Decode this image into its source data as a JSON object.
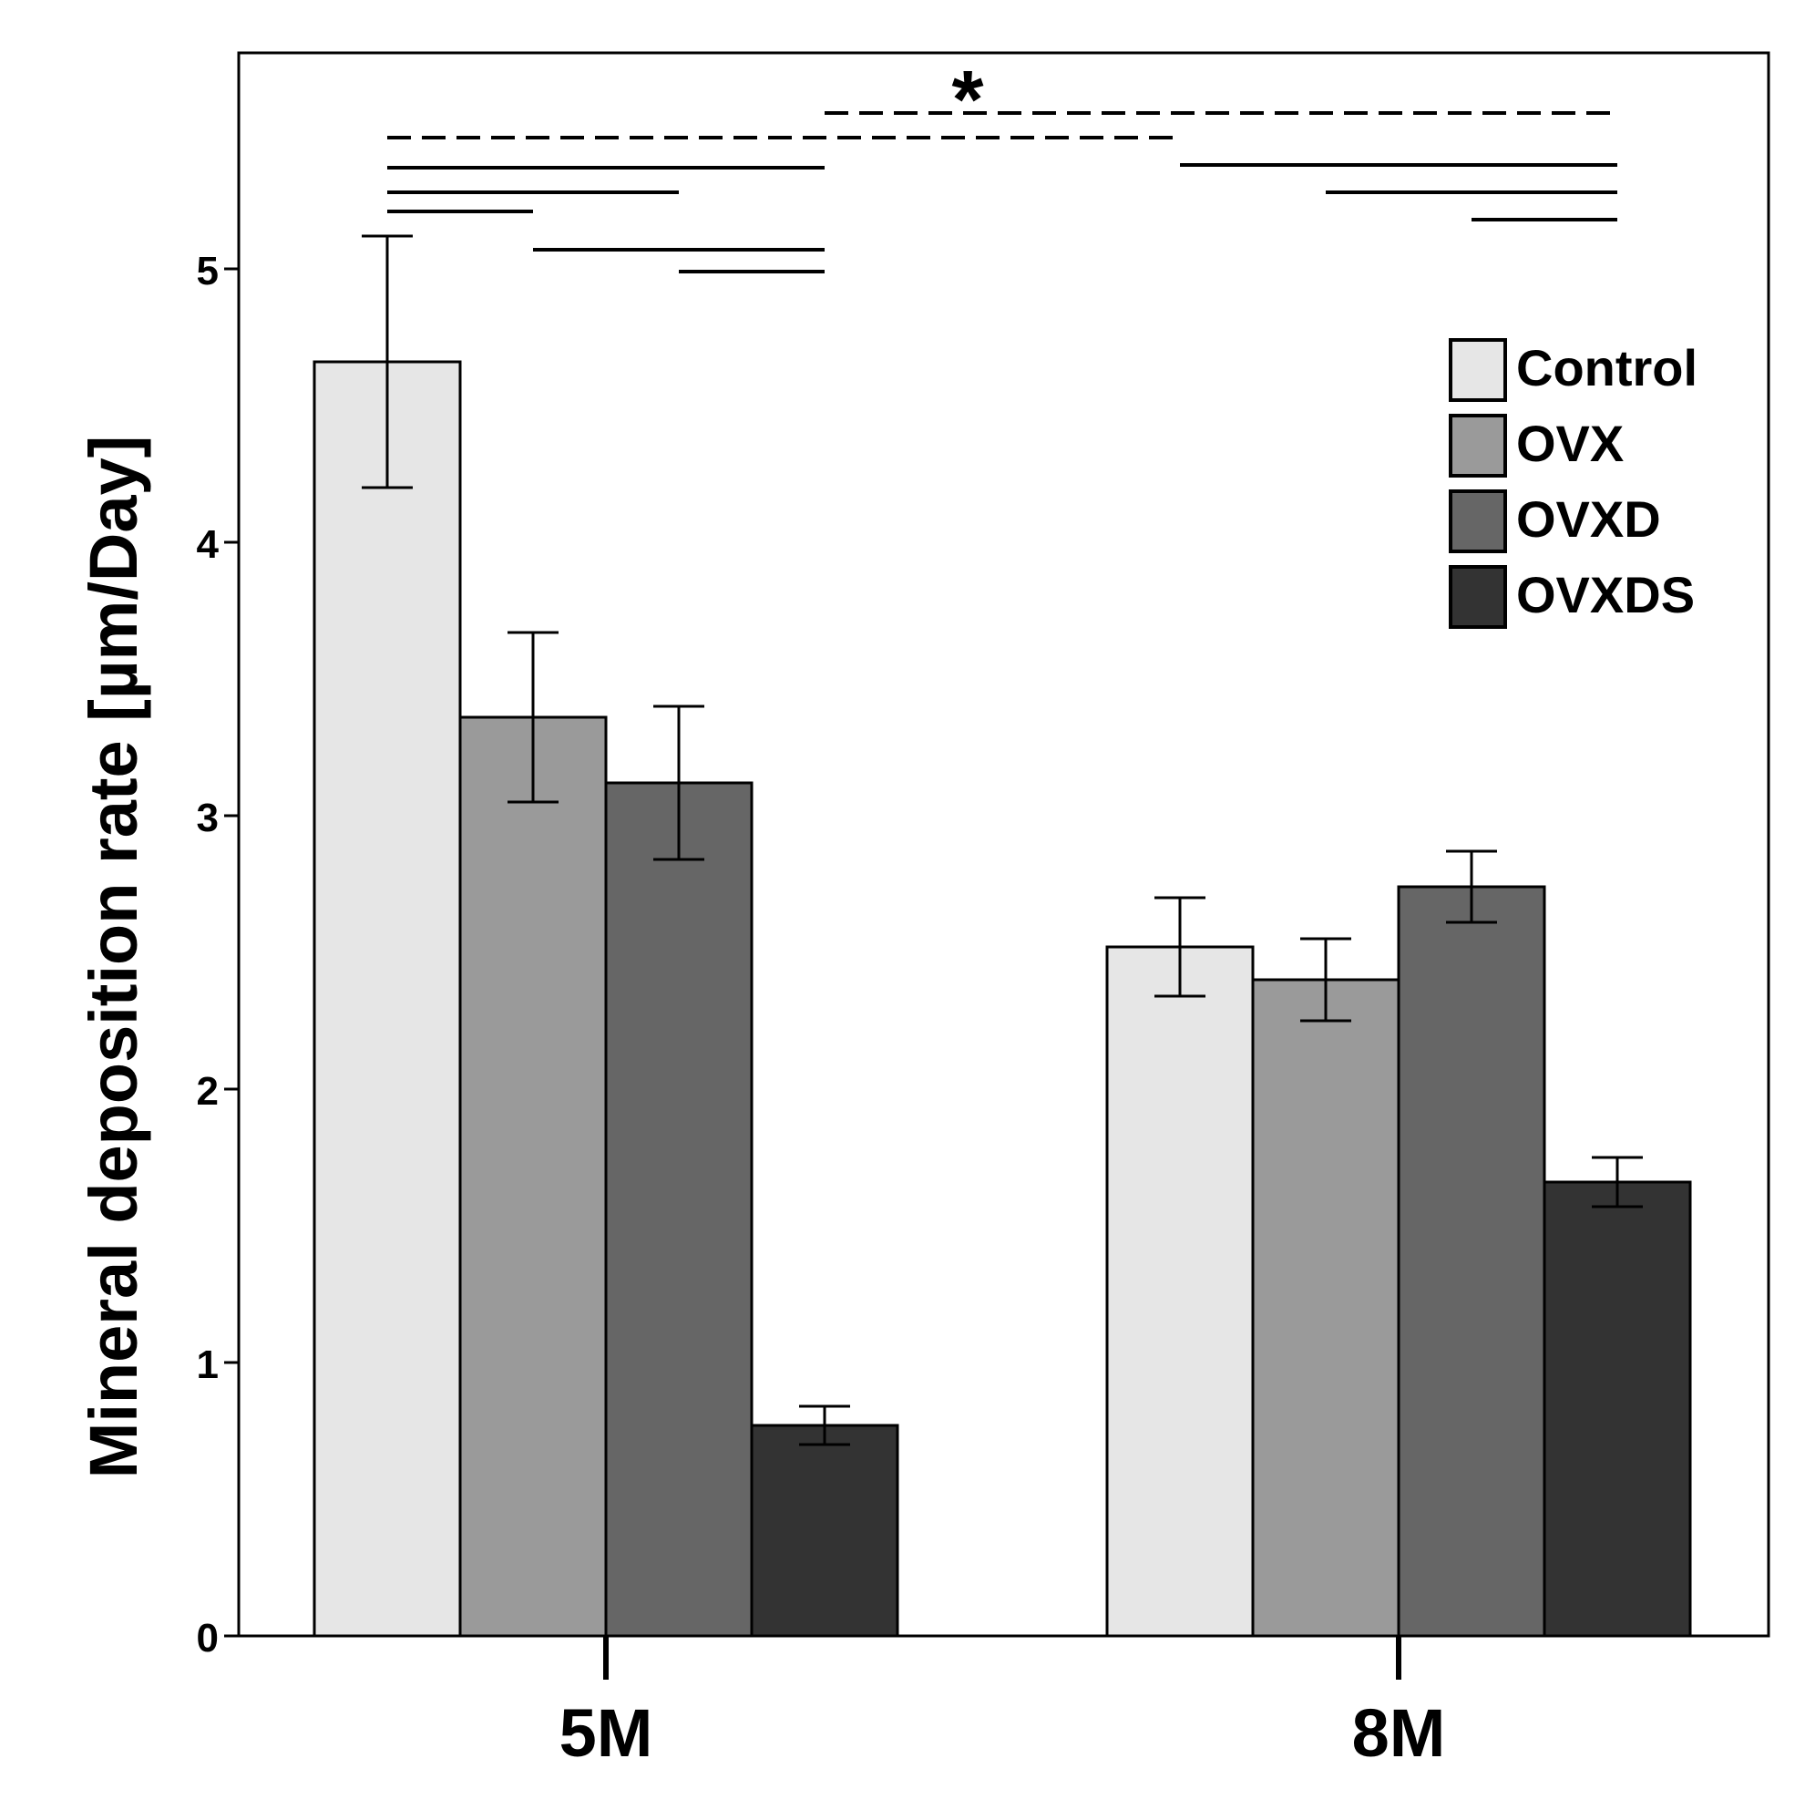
{
  "chart_data": {
    "type": "bar",
    "title": "",
    "xlabel": "",
    "ylabel": "Mineral deposition rate [µm/Day]",
    "categories": [
      "5M",
      "8M"
    ],
    "ylim": [
      0,
      5.8
    ],
    "yticks": [
      0,
      1,
      2,
      3,
      4,
      5
    ],
    "grid": false,
    "legend_position": "top-right",
    "series": [
      {
        "name": "Control",
        "color": "#e6e6e6",
        "values": [
          4.66,
          2.52
        ],
        "errors": [
          0.46,
          0.18
        ]
      },
      {
        "name": "OVX",
        "color": "#9a9a9a",
        "values": [
          3.36,
          2.4
        ],
        "errors": [
          0.31,
          0.15
        ]
      },
      {
        "name": "OVXD",
        "color": "#666666",
        "values": [
          3.12,
          2.74
        ],
        "errors": [
          0.28,
          0.13
        ]
      },
      {
        "name": "OVXDS",
        "color": "#333333",
        "values": [
          0.77,
          1.66
        ],
        "errors": [
          0.07,
          0.09
        ]
      }
    ],
    "significance": {
      "marker": "*",
      "solid_brackets": [
        {
          "category": "5M",
          "from": "Control",
          "to": "OVX",
          "level": 5.21
        },
        {
          "category": "5M",
          "from": "Control",
          "to": "OVXD",
          "level": 5.28
        },
        {
          "category": "5M",
          "from": "Control",
          "to": "OVXDS",
          "level": 5.37
        },
        {
          "category": "5M",
          "from": "OVX",
          "to": "OVXDS",
          "level": 5.07
        },
        {
          "category": "5M",
          "from": "OVXD",
          "to": "OVXDS",
          "level": 4.99
        },
        {
          "category": "8M",
          "from": "Control",
          "to": "OVXDS",
          "level": 5.38
        },
        {
          "category": "8M",
          "from": "OVX",
          "to": "OVXDS",
          "level": 5.28
        },
        {
          "category": "8M",
          "from": "OVXD",
          "to": "OVXDS",
          "level": 5.18
        }
      ],
      "dashed_brackets": [
        {
          "from": "5M Control",
          "to": "8M Control",
          "level": 5.48
        },
        {
          "from": "5M OVXDS",
          "to": "8M OVXDS",
          "level": 5.57
        }
      ]
    }
  }
}
